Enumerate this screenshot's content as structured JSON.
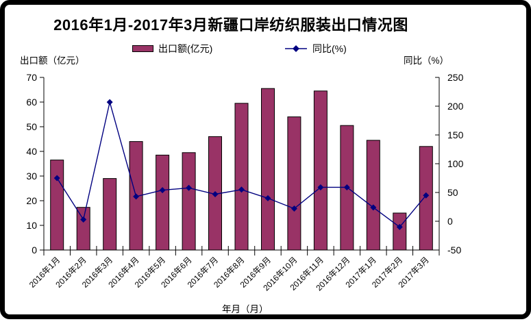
{
  "title": "2016年1月-2017年3月新疆口岸纺织服装出口情况图",
  "legend": [
    {
      "label": "出口额(亿元)",
      "swatch": "bar-swatch-icon",
      "color": "#993366"
    },
    {
      "label": "同比(%)",
      "swatch": "line-diamond-swatch-icon",
      "color": "#000080"
    }
  ],
  "axes": {
    "left_title": "出口额（亿元）",
    "right_title": "同比（%）",
    "x_title": "年月（月）",
    "left_ticks": [
      "0",
      "10",
      "20",
      "30",
      "40",
      "50",
      "60",
      "70"
    ],
    "right_ticks": [
      "-50",
      "0",
      "50",
      "100",
      "150",
      "200",
      "250"
    ]
  },
  "chart_data": {
    "type": "combo",
    "title": "2016年1月-2017年3月新疆口岸纺织服装出口情况图",
    "categories": [
      "2016年1月",
      "2016年2月",
      "2016年3月",
      "2016年4月",
      "2016年5月",
      "2016年6月",
      "2016年7月",
      "2016年8月",
      "2016年9月",
      "2016年10月",
      "2016年11月",
      "2016年12月",
      "2017年1月",
      "2017年2月",
      "2017年3月"
    ],
    "series": [
      {
        "name": "出口额(亿元)",
        "type": "bar",
        "axis": "left",
        "color": "#993366",
        "values": [
          36.5,
          17.3,
          29,
          44,
          38.5,
          39.5,
          46,
          59.5,
          65.5,
          54,
          64.5,
          50.5,
          44.5,
          15,
          42
        ]
      },
      {
        "name": "同比(%)",
        "type": "line",
        "axis": "right",
        "color": "#000080",
        "marker": "diamond",
        "values": [
          75,
          3,
          207,
          43,
          54,
          58,
          47,
          55,
          40,
          22,
          59,
          59,
          24,
          -10,
          45
        ]
      }
    ],
    "xlabel": "年月（月）",
    "ylabel_left": "出口额（亿元）",
    "ylabel_right": "同比（%）",
    "y_left": {
      "min": 0,
      "max": 70,
      "step": 10
    },
    "y_right": {
      "min": -50,
      "max": 250,
      "step": 50
    },
    "grid": false,
    "legend_position": "top"
  }
}
